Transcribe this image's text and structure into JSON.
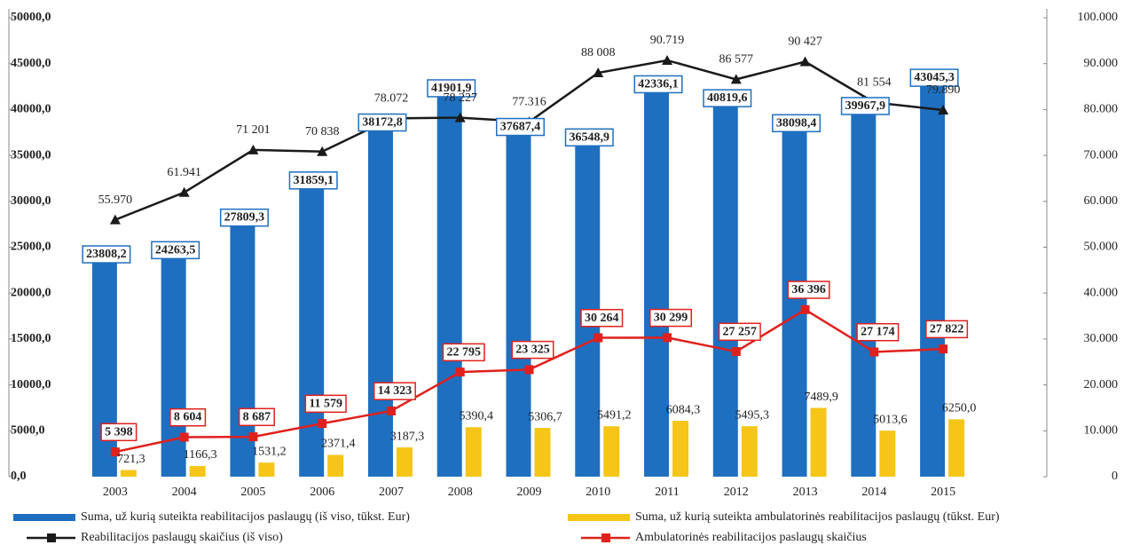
{
  "chart_data": {
    "type": "bar",
    "categories": [
      "2003",
      "2004",
      "2005",
      "2006",
      "2007",
      "2008",
      "2009",
      "2010",
      "2011",
      "2012",
      "2013",
      "2014",
      "2015"
    ],
    "series": [
      {
        "name": "Suma, už kurią suteikta reabilitacijos paslaugų (iš viso, tūkst. Eur)",
        "type": "bar",
        "color": "#1f6fc0",
        "values": [
          23808.2,
          24263.5,
          27809.3,
          31859.1,
          38172.8,
          41901.9,
          37687.4,
          36548.9,
          42336.1,
          40819.6,
          38098.4,
          39967.9,
          43045.3
        ],
        "value_labels": [
          "23808,2",
          "24263,5",
          "27809,3",
          "31859,1",
          "38172,8",
          "41901,9",
          "37687,4",
          "36548,9",
          "42336,1",
          "40819,6",
          "38098,4",
          "39967,9",
          "43045,3"
        ]
      },
      {
        "name": "Suma, už kurią suteikta ambulatorinės reabilitacijos paslaugų (tūkst. Eur)",
        "type": "bar",
        "color": "#f5c518",
        "values": [
          721.3,
          1166.3,
          1531.2,
          2371.4,
          3187.3,
          5390.4,
          5306.7,
          5491.2,
          6084.3,
          5495.3,
          7489.9,
          5013.6,
          6250.0
        ],
        "value_labels": [
          "721,3",
          "1166,3",
          "1531,2",
          "2371,4",
          "3187,3",
          "5390,4",
          "5306,7",
          "5491,2",
          "6084,3",
          "5495,3",
          "7489,9",
          "5013,6",
          "6250,0"
        ]
      },
      {
        "name": "Reabilitacijos paslaugų skaičius (iš viso)",
        "type": "line",
        "axis": "y2",
        "color": "#1a1a1a",
        "values": [
          55970,
          61941,
          71201,
          70838,
          78072,
          78227,
          77316,
          88008,
          90719,
          86577,
          90427,
          81554,
          79890
        ],
        "value_labels": [
          "55.970",
          "61.941",
          "71 201",
          "70 838",
          "78.072",
          "78 227",
          "77.316",
          "88 008",
          "90.719",
          "86 577",
          "90 427",
          "81 554",
          "79.890"
        ]
      },
      {
        "name": "Ambulatorinės reabilitacijos paslaugų skaičius",
        "type": "line",
        "axis": "y2",
        "color": "#e0201c",
        "values": [
          5398,
          8604,
          8687,
          11579,
          14323,
          22795,
          23325,
          30264,
          30299,
          27257,
          36396,
          27174,
          27822
        ],
        "value_labels": [
          "5 398",
          "8 604",
          "8 687",
          "11 579",
          "14 323",
          "22 795",
          "23 325",
          "30 264",
          "30 299",
          "27 257",
          "36 396",
          "27 174",
          "27 822"
        ]
      }
    ],
    "ylim": [
      0,
      50000
    ],
    "yticks": [
      {
        "value": 0,
        "label": "0,0"
      },
      {
        "value": 5000,
        "label": "5000,0"
      },
      {
        "value": 10000,
        "label": "10000,0"
      },
      {
        "value": 15000,
        "label": "15000,0"
      },
      {
        "value": 20000,
        "label": "20000,0"
      },
      {
        "value": 25000,
        "label": "25000,0"
      },
      {
        "value": 30000,
        "label": "30000,0"
      },
      {
        "value": 35000,
        "label": "35000,0"
      },
      {
        "value": 40000,
        "label": "40000,0"
      },
      {
        "value": 45000,
        "label": "45000,0"
      },
      {
        "value": 50000,
        "label": "50000,0"
      }
    ],
    "y2lim": [
      0,
      100000
    ],
    "y2ticks": [
      0,
      {
        "value": 10000,
        "label": "10.000"
      },
      {
        "value": 20000,
        "label": "20.000"
      },
      {
        "value": 30000,
        "label": "30.000"
      },
      {
        "value": 40000,
        "label": "40.000"
      },
      {
        "value": 50000,
        "label": "50.000"
      },
      {
        "value": 60000,
        "label": "60.000"
      },
      {
        "value": 70000,
        "label": "70.000"
      },
      {
        "value": 80000,
        "label": "80.000"
      },
      {
        "value": 90000,
        "label": "90.000"
      },
      {
        "value": 100000,
        "label": "100.000"
      }
    ],
    "grid": false,
    "legend": "bottom"
  }
}
